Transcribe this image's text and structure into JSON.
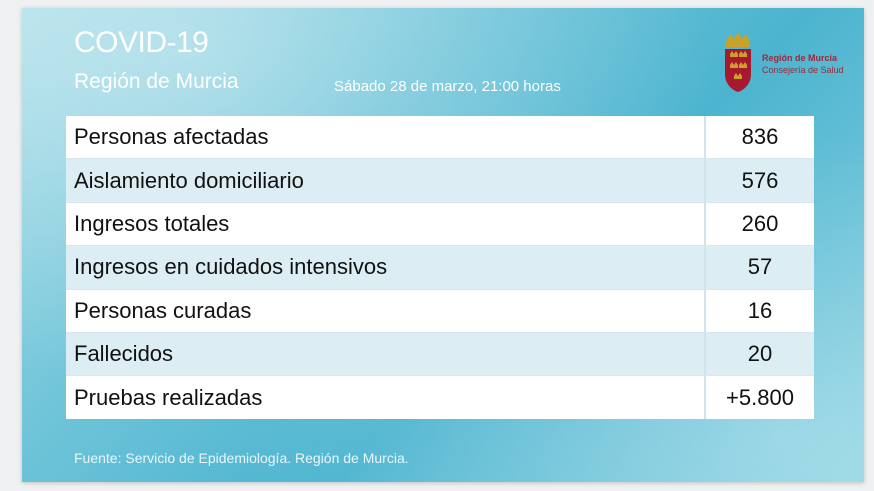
{
  "header": {
    "title": "COVID-19",
    "subtitle": "Región de Murcia",
    "date": "Sábado 28 de marzo, 21:00 horas"
  },
  "logo": {
    "line1": "Región de Murcia",
    "line2": "Consejería de Salud",
    "icon": "coat-of-arms-icon",
    "colors": {
      "crown": "#c9a227",
      "shield": "#a6192e"
    }
  },
  "table": {
    "rows": [
      {
        "label": "Personas afectadas",
        "value": "836"
      },
      {
        "label": "Aislamiento domiciliario",
        "value": "576"
      },
      {
        "label": "Ingresos totales",
        "value": "260"
      },
      {
        "label": "Ingresos en cuidados intensivos",
        "value": "57"
      },
      {
        "label": "Personas curadas",
        "value": "16"
      },
      {
        "label": "Fallecidos",
        "value": "20"
      },
      {
        "label": "Pruebas realizadas",
        "value": "+5.800"
      }
    ]
  },
  "footer": {
    "source": "Fuente: Servicio de Epidemiología. Región de Murcia."
  }
}
